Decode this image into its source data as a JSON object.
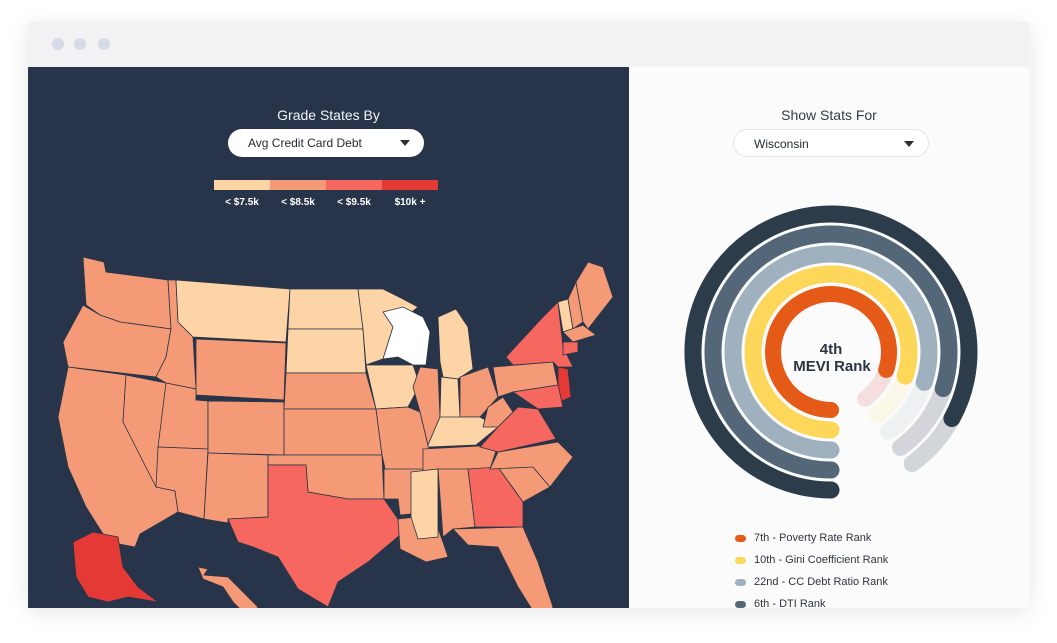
{
  "map_panel": {
    "heading": "Grade States By",
    "metric_dropdown": {
      "value": "Avg Credit Card Debt"
    },
    "legend": [
      {
        "label": "< $7.5k",
        "color": "#fdd4a6"
      },
      {
        "label": "< $8.5k",
        "color": "#f59a76"
      },
      {
        "label": "< $9.5k",
        "color": "#f6675f"
      },
      {
        "label": "$10k +",
        "color": "#e53935"
      }
    ],
    "selected_state": "Wisconsin"
  },
  "stats_panel": {
    "heading": "Show Stats For",
    "state_dropdown": {
      "value": "Wisconsin"
    },
    "center_rank": "4th",
    "center_label": "MEVI Rank",
    "rings": [
      {
        "label": "7th - Poverty Rate Rank",
        "color": "#e55a17",
        "track": "#f4dede",
        "fill": 0.8
      },
      {
        "label": "10th - Gini Coefficient Rank",
        "color": "#fcd75a",
        "track": "#fbf8ea",
        "fill": 0.8
      },
      {
        "label": "22nd - CC Debt Ratio Rank",
        "color": "#9fb1bf",
        "track": "#edf1f2",
        "fill": 0.8
      },
      {
        "label": "6th - DTI Rank",
        "color": "#546778",
        "track": "#d2d6da",
        "fill": 0.8
      },
      {
        "label": "",
        "color": "#2c3c4a",
        "track": "#d2d6da",
        "fill": 0.83
      }
    ]
  },
  "colors": {
    "panel_dark": "#283449",
    "state_border": "#2a3447",
    "selected": "#ffffff"
  }
}
